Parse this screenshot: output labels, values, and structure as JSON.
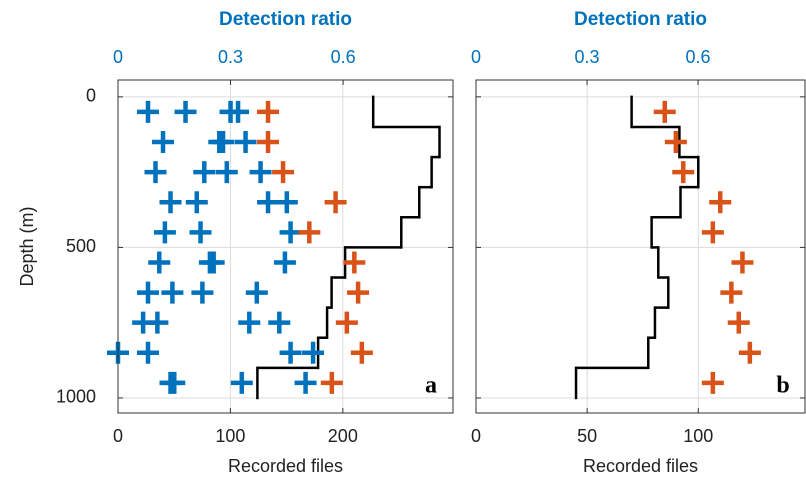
{
  "chart_data": [
    {
      "type": "scatter",
      "label": "a",
      "top_label": "Detection ratio",
      "xlabel": "Recorded files",
      "ylabel": "Depth (m)",
      "xlim": [
        0,
        298
      ],
      "xticks": [
        0,
        100,
        200
      ],
      "x2lim": [
        0,
        0.893
      ],
      "x2ticks": [
        0,
        0.3,
        0.6
      ],
      "ylim": [
        -56,
        1050
      ],
      "yticks": [
        0,
        500,
        1000
      ],
      "y_reversed": true,
      "grid": true,
      "series": [
        {
          "color": "#0072BD",
          "x": [
            0.08,
            0.18,
            0.3,
            0.32,
            0.12,
            0.27,
            0.28,
            0.34,
            0.1,
            0.23,
            0.29,
            0.38,
            0.14,
            0.21,
            0.4,
            0.45,
            0.125,
            0.22,
            0.46,
            0.11,
            0.245,
            0.255,
            0.445,
            0.08,
            0.145,
            0.225,
            0.37,
            0.067,
            0.105,
            0.35,
            0.43,
            0,
            0.08,
            0.46,
            0.52,
            0.14,
            0.15,
            0.33,
            0.5
          ],
          "y": [
            50,
            50,
            50,
            50,
            150,
            150,
            150,
            150,
            250,
            250,
            250,
            250,
            350,
            350,
            350,
            350,
            450,
            450,
            450,
            550,
            550,
            550,
            550,
            650,
            650,
            650,
            650,
            750,
            750,
            750,
            750,
            850,
            850,
            850,
            850,
            950,
            950,
            950,
            950
          ]
        },
        {
          "color": "#D95319",
          "x": [
            0.4,
            0.4,
            0.44,
            0.58,
            0.51,
            0.63,
            0.64,
            0.61,
            0.65,
            0.57
          ],
          "y": [
            50,
            150,
            250,
            350,
            450,
            550,
            650,
            750,
            850,
            950
          ]
        }
      ],
      "step": {
        "color": "#000000",
        "edges": [
          0,
          100,
          200,
          300,
          400,
          500,
          600,
          700,
          800,
          900,
          1000
        ],
        "values": [
          227,
          286,
          279,
          268,
          252,
          202,
          190,
          186,
          178,
          124
        ]
      }
    },
    {
      "type": "scatter",
      "label": "b",
      "top_label": "Detection ratio",
      "xlabel": "Recorded files",
      "xlim": [
        0,
        148
      ],
      "xticks": [
        0,
        50,
        100
      ],
      "x2lim": [
        0,
        0.889
      ],
      "x2ticks": [
        0,
        0.3,
        0.6
      ],
      "ylim": [
        -56,
        1050
      ],
      "yticks": [
        0,
        500,
        1000
      ],
      "y_reversed": true,
      "grid": true,
      "series": [
        {
          "color": "#D95319",
          "x": [
            0.51,
            0.54,
            0.56,
            0.66,
            0.64,
            0.72,
            0.69,
            0.71,
            0.74,
            0.64
          ],
          "y": [
            50,
            150,
            250,
            350,
            450,
            550,
            650,
            750,
            850,
            950
          ]
        }
      ],
      "step": {
        "color": "#000000",
        "edges": [
          0,
          100,
          200,
          300,
          400,
          500,
          600,
          700,
          800,
          900,
          1000
        ],
        "values": [
          70,
          91.5,
          100,
          92,
          79,
          82,
          86.5,
          80.5,
          77.5,
          45
        ]
      }
    }
  ]
}
